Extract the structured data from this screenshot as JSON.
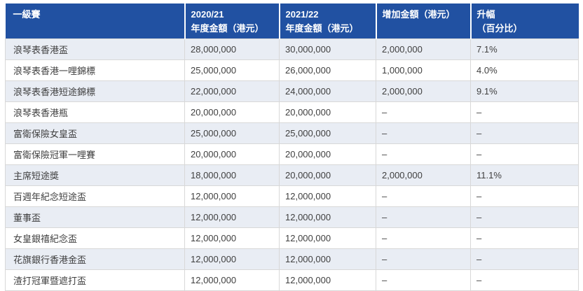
{
  "chart_data": {
    "type": "table",
    "columns": [
      "一級賽",
      "2020/21 年度金額（港元）",
      "2021/22 年度金額（港元）",
      "增加金額（港元）",
      "升幅（百分比）"
    ],
    "rows": [
      [
        "浪琴表香港盃",
        "28,000,000",
        "30,000,000",
        "2,000,000",
        "7.1%"
      ],
      [
        "浪琴表香港一哩錦標",
        "25,000,000",
        "26,000,000",
        "1,000,000",
        "4.0%"
      ],
      [
        "浪琴表香港短途錦標",
        "22,000,000",
        "24,000,000",
        "2,000,000",
        "9.1%"
      ],
      [
        "浪琴表香港瓶",
        "20,000,000",
        "20,000,000",
        "–",
        "–"
      ],
      [
        "富衛保險女皇盃",
        "25,000,000",
        "25,000,000",
        "–",
        "–"
      ],
      [
        "富衛保險冠軍一哩賽",
        "20,000,000",
        "20,000,000",
        "–",
        "–"
      ],
      [
        "主席短途獎",
        "18,000,000",
        "20,000,000",
        "2,000,000",
        "11.1%"
      ],
      [
        "百週年紀念短途盃",
        "12,000,000",
        "12,000,000",
        "–",
        "–"
      ],
      [
        "董事盃",
        "12,000,000",
        "12,000,000",
        "–",
        "–"
      ],
      [
        "女皇銀禧紀念盃",
        "12,000,000",
        "12,000,000",
        "–",
        "–"
      ],
      [
        "花旗銀行香港金盃",
        "12,000,000",
        "12,000,000",
        "–",
        "–"
      ],
      [
        "渣打冠軍暨遮打盃",
        "12,000,000",
        "12,000,000",
        "–",
        "–"
      ]
    ]
  },
  "headers": [
    {
      "line1": "一級賽",
      "line2": ""
    },
    {
      "line1": "2020/21",
      "line2": "年度金額（港元）"
    },
    {
      "line1": "2021/22",
      "line2": "年度金額（港元）"
    },
    {
      "line1": "增加金額（港元）",
      "line2": ""
    },
    {
      "line1": "升幅",
      "line2": "（百分比）"
    }
  ],
  "colors": {
    "header_bg": "#2151a2",
    "header_text": "#ffffff",
    "row_alt_bg": "#e9edf4",
    "row_bg": "#ffffff",
    "border": "#d8d8d8",
    "text": "#3f3f3f"
  }
}
